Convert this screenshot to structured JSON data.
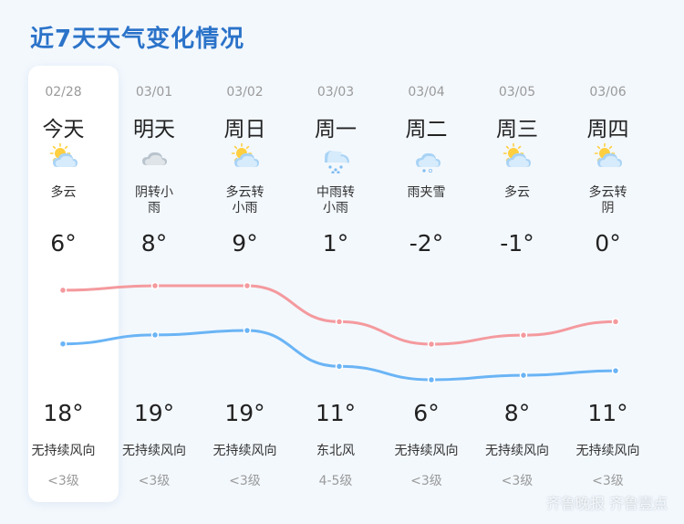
{
  "title": "近7天天气变化情况",
  "watermark": "齐鲁晚报 齐鲁壹点",
  "colors": {
    "high": "#f49a9e",
    "low": "#6ab4f5",
    "title": "#2b73c9"
  },
  "days": [
    {
      "date": "02/28",
      "day": "今天",
      "icon": "partly-cloudy-icon",
      "cond": "多云",
      "wind": "无持续风向",
      "level": "<3级"
    },
    {
      "date": "03/01",
      "day": "明天",
      "icon": "cloudy-icon",
      "cond": "阴转小\n雨",
      "wind": "无持续风向",
      "level": "<3级"
    },
    {
      "date": "03/02",
      "day": "周日",
      "icon": "partly-cloudy-icon",
      "cond": "多云转\n小雨",
      "wind": "无持续风向",
      "level": "<3级"
    },
    {
      "date": "03/03",
      "day": "周一",
      "icon": "rain-icon",
      "cond": "中雨转\n小雨",
      "wind": "东北风",
      "level": "4-5级"
    },
    {
      "date": "03/04",
      "day": "周二",
      "icon": "sleet-icon",
      "cond": "雨夹雪",
      "wind": "无持续风向",
      "level": "<3级"
    },
    {
      "date": "03/05",
      "day": "周三",
      "icon": "partly-cloudy-icon",
      "cond": "多云",
      "wind": "无持续风向",
      "level": "<3级"
    },
    {
      "date": "03/06",
      "day": "周四",
      "icon": "partly-cloudy-icon",
      "cond": "多云转\n阴",
      "wind": "无持续风向",
      "level": "<3级"
    }
  ],
  "chart_data": {
    "type": "line",
    "x": [
      "02/28",
      "03/01",
      "03/02",
      "03/03",
      "03/04",
      "03/05",
      "03/06"
    ],
    "series": [
      {
        "values": [
          18,
          19,
          19,
          11,
          6,
          8,
          11
        ]
      },
      {
        "values": [
          6,
          8,
          9,
          1,
          -2,
          -1,
          0
        ]
      }
    ],
    "labels_top": [
      "6°",
      "8°",
      "9°",
      "1°",
      "-2°",
      "-1°",
      "0°"
    ],
    "labels_bottom": [
      "18°",
      "19°",
      "19°",
      "11°",
      "6°",
      "8°",
      "11°"
    ]
  }
}
